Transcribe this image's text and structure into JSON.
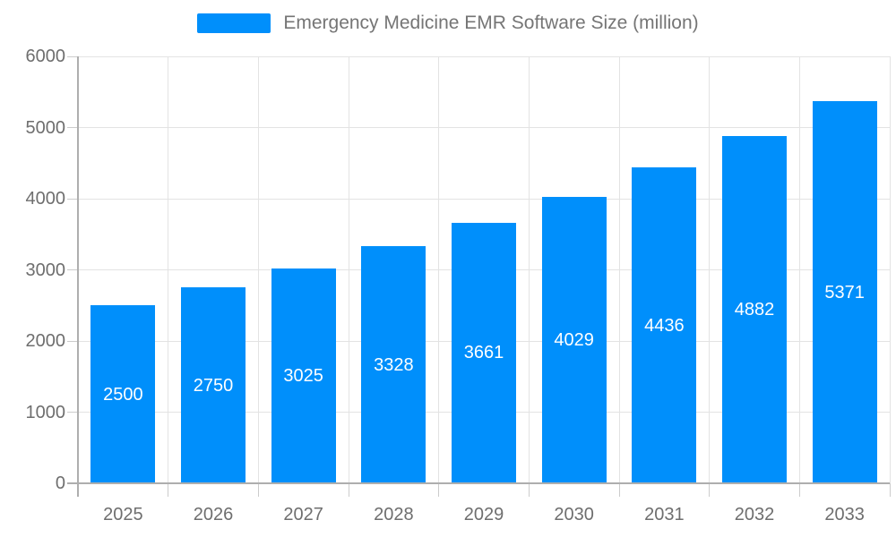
{
  "legend": {
    "label": "Emergency Medicine EMR Software Size (million)",
    "swatch_color": "#008FFB"
  },
  "chart_data": {
    "type": "bar",
    "title": "Emergency Medicine EMR Software Size (million)",
    "series": [
      {
        "name": "Emergency Medicine EMR Software Size (million)",
        "values": [
          2500,
          2750,
          3025,
          3328,
          3661,
          4029,
          4436,
          4882,
          5371
        ]
      }
    ],
    "categories": [
      "2025",
      "2026",
      "2027",
      "2028",
      "2029",
      "2030",
      "2031",
      "2032",
      "2033"
    ],
    "data_labels": [
      "2500",
      "2750",
      "3025",
      "3328",
      "3661",
      "4029",
      "4436",
      "4882",
      "5371"
    ],
    "xlabel": "",
    "ylabel": "",
    "ylim": [
      0,
      6000
    ],
    "yticks": [
      0,
      1000,
      2000,
      3000,
      4000,
      5000,
      6000
    ],
    "ytick_labels": [
      "0",
      "1000",
      "2000",
      "3000",
      "4000",
      "5000",
      "6000"
    ],
    "grid": true,
    "legend_position": "top",
    "colors": {
      "bar": "#008FFB",
      "grid": "#e3e3e3",
      "axis": "#aeaeae",
      "tick": "#cccccc",
      "tick_label": "#6e6e6e",
      "title": "#757575",
      "data_label": "#ffffff"
    }
  }
}
